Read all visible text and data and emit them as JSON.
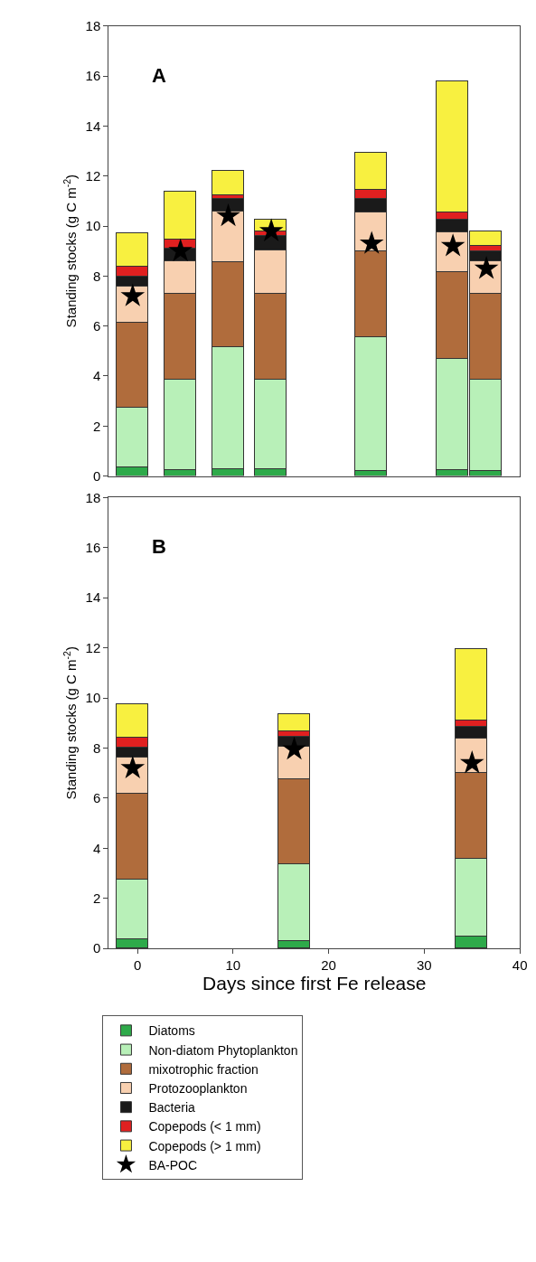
{
  "chart_data": [
    {
      "type": "bar",
      "stacked": true,
      "title": "A",
      "ylabel": "Standing stocks (g C m$^{-2}$)",
      "x": [
        -0.5,
        4.5,
        9.5,
        14,
        24.5,
        33,
        36.5
      ],
      "xlim": [
        -3,
        40
      ],
      "xticks": [
        0,
        10,
        20,
        30,
        40
      ],
      "ylim": [
        0,
        18
      ],
      "yticks": [
        0,
        2,
        4,
        6,
        8,
        10,
        12,
        14,
        16,
        18
      ],
      "tick_labels": "y",
      "legend": "bottom",
      "series": [
        {
          "name": "Diatoms",
          "color": "#2eaa4a",
          "values": [
            0.35,
            0.25,
            0.3,
            0.3,
            0.2,
            0.25,
            0.2
          ]
        },
        {
          "name": "Non-diatom Phytoplankton",
          "color": "#b8f0b8",
          "values": [
            2.4,
            3.6,
            4.85,
            3.55,
            5.35,
            4.45,
            3.68
          ]
        },
        {
          "name": "mixotrophic fraction",
          "color": "#b06c3c",
          "values": [
            3.4,
            3.45,
            3.4,
            3.45,
            3.45,
            3.45,
            3.42
          ]
        },
        {
          "name": "Protozooplankton",
          "color": "#f8d0b0",
          "values": [
            1.45,
            1.3,
            2.05,
            1.75,
            1.55,
            1.6,
            1.3
          ]
        },
        {
          "name": "Bacteria",
          "color": "#1a1a1a",
          "values": [
            0.4,
            0.5,
            0.5,
            0.55,
            0.55,
            0.5,
            0.4
          ]
        },
        {
          "name": "Copepods (< 1 mm)",
          "color": "#e02020",
          "values": [
            0.4,
            0.35,
            0.15,
            0.2,
            0.35,
            0.3,
            0.2
          ]
        },
        {
          "name": "Copepods (> 1 mm)",
          "color": "#f8f040",
          "values": [
            1.33,
            1.95,
            0.95,
            0.45,
            1.5,
            5.25,
            0.6
          ]
        },
        {
          "name": "BA-POC",
          "type": "scatter",
          "marker": "star",
          "color": "#000000",
          "values": [
            7.2,
            9.0,
            10.4,
            9.8,
            9.3,
            9.2,
            8.3
          ]
        }
      ]
    },
    {
      "type": "bar",
      "stacked": true,
      "title": "B",
      "ylabel": "Standing stocks (g C m$^{-2}$)",
      "xlabel": "Days since first Fe release",
      "x": [
        -0.5,
        16.4,
        35
      ],
      "xlim": [
        -3,
        40
      ],
      "xticks": [
        0,
        10,
        20,
        30,
        40
      ],
      "ylim": [
        0,
        18
      ],
      "yticks": [
        0,
        2,
        4,
        6,
        8,
        10,
        12,
        14,
        16,
        18
      ],
      "legend": "bottom",
      "series": [
        {
          "name": "Diatoms",
          "color": "#2eaa4a",
          "values": [
            0.35,
            0.3,
            0.45
          ]
        },
        {
          "name": "Non-diatom Phytoplankton",
          "color": "#b8f0b8",
          "values": [
            2.4,
            3.05,
            3.1
          ]
        },
        {
          "name": "mixotrophic fraction",
          "color": "#b06c3c",
          "values": [
            3.4,
            3.4,
            3.45
          ]
        },
        {
          "name": "Protozooplankton",
          "color": "#f8d0b0",
          "values": [
            1.45,
            1.3,
            1.35
          ]
        },
        {
          "name": "Bacteria",
          "color": "#1a1a1a",
          "values": [
            0.4,
            0.4,
            0.5
          ]
        },
        {
          "name": "Copepods (< 1 mm)",
          "color": "#e02020",
          "values": [
            0.4,
            0.2,
            0.25
          ]
        },
        {
          "name": "Copepods (> 1 mm)",
          "color": "#f8f040",
          "values": [
            1.33,
            0.7,
            2.85
          ]
        },
        {
          "name": "BA-POC",
          "type": "scatter",
          "marker": "star",
          "color": "#000000",
          "values": [
            7.2,
            7.95,
            7.4
          ]
        }
      ]
    }
  ]
}
